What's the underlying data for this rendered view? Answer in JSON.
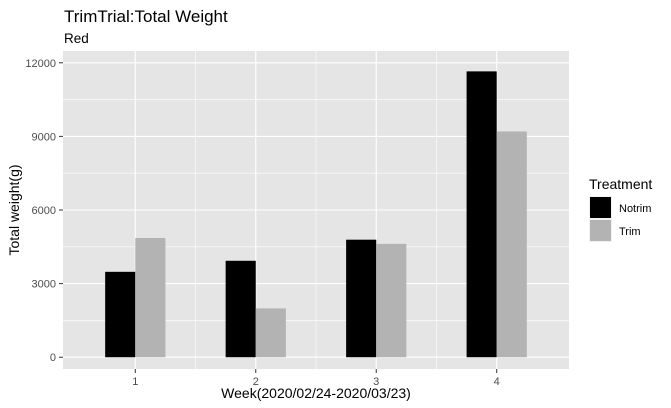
{
  "chart_data": {
    "type": "bar",
    "title": "TrimTrial:Total Weight",
    "subtitle": "Red",
    "xlabel": "Week(2020/02/24-2020/03/23)",
    "ylabel": "Total weight(g)",
    "categories": [
      "1",
      "2",
      "3",
      "4"
    ],
    "series": [
      {
        "name": "Notrim",
        "color": "#000000",
        "values": [
          3480,
          3930,
          4790,
          11650
        ]
      },
      {
        "name": "Trim",
        "color": "#b3b3b3",
        "values": [
          4860,
          1990,
          4620,
          9200
        ]
      }
    ],
    "ylim": [
      -480,
      12480
    ],
    "yticks": [
      0,
      3000,
      6000,
      9000,
      12000
    ],
    "ytick_labels": [
      "0",
      "3000",
      "6000",
      "9000",
      "12000"
    ],
    "grid": true,
    "legend": {
      "title": "Treatment",
      "position": "right"
    },
    "panel_background": "#e5e5e5",
    "grid_color": "#ffffff"
  }
}
